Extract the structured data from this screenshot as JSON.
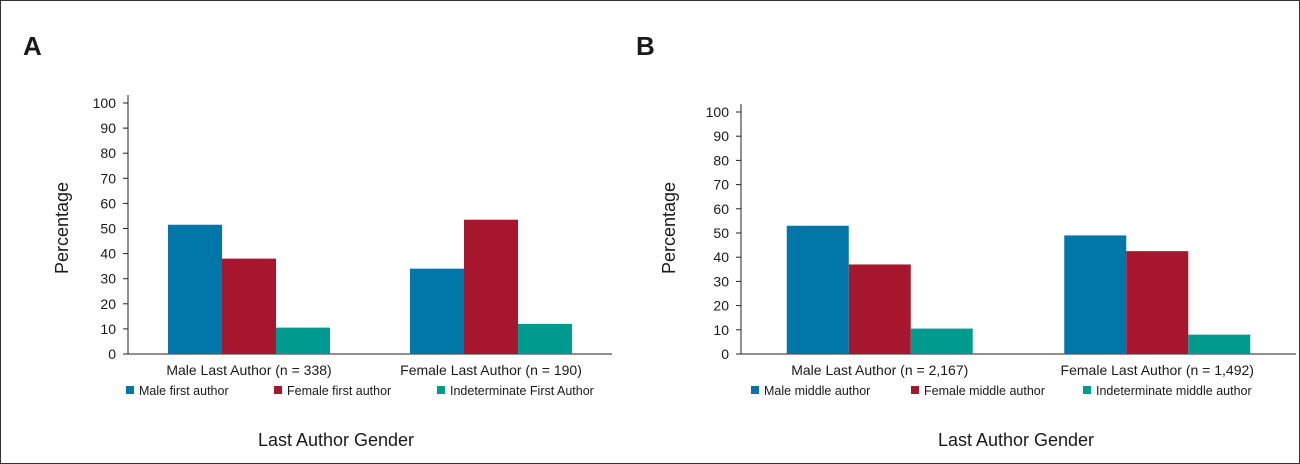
{
  "chart_data": [
    {
      "panel_label": "A",
      "type": "bar",
      "xlabel": "Last Author Gender",
      "ylabel": "Percentage",
      "ylim": [
        0,
        100
      ],
      "yticks": [
        0,
        10,
        20,
        30,
        40,
        50,
        60,
        70,
        80,
        90,
        100
      ],
      "categories": [
        "Male Last Author (n = 338)",
        "Female Last Author (n = 190)"
      ],
      "series": [
        {
          "name": "Male first author",
          "color": "#0077a8",
          "values": [
            51.5,
            34
          ]
        },
        {
          "name": "Female first author",
          "color": "#a7162f",
          "values": [
            38,
            53.5
          ]
        },
        {
          "name": "Indeterminate First Author",
          "color": "#009a8f",
          "values": [
            10.5,
            12
          ]
        }
      ],
      "grid": false,
      "legend_position": "bottom"
    },
    {
      "panel_label": "B",
      "type": "bar",
      "xlabel": "Last Author Gender",
      "ylabel": "Percentage",
      "ylim": [
        0,
        100
      ],
      "yticks": [
        0,
        10,
        20,
        30,
        40,
        50,
        60,
        70,
        80,
        90,
        100
      ],
      "categories": [
        "Male Last Author (n = 2,167)",
        "Female Last Author  (n = 1,492)"
      ],
      "series": [
        {
          "name": "Male middle author",
          "color": "#0077a8",
          "values": [
            53,
            49
          ]
        },
        {
          "name": "Female middle author",
          "color": "#a7162f",
          "values": [
            37,
            42.5
          ]
        },
        {
          "name": "Indeterminate middle author",
          "color": "#009a8f",
          "values": [
            10.5,
            8
          ]
        }
      ],
      "grid": false,
      "legend_position": "bottom"
    }
  ]
}
